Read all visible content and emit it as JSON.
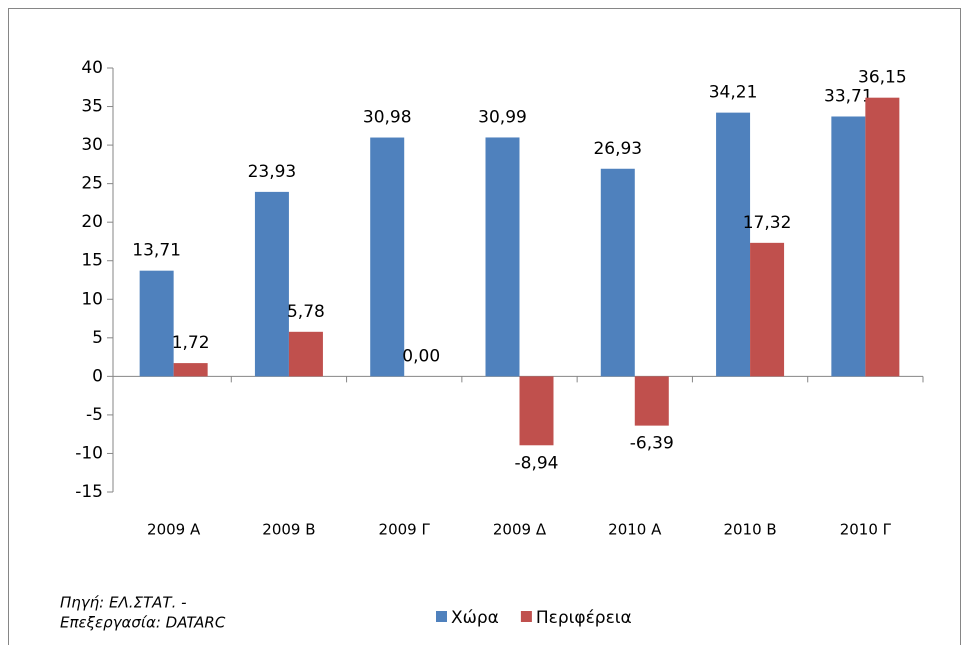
{
  "chart_data": {
    "type": "bar",
    "categories": [
      "2009 A",
      "2009 B",
      "2009 Γ",
      "2009 Δ",
      "2010 A",
      "2010 B",
      "2010 Γ"
    ],
    "series": [
      {
        "name": "Χώρα",
        "color": "#4f81bd",
        "values": [
          13.71,
          23.93,
          30.98,
          30.99,
          26.93,
          34.21,
          33.71
        ],
        "value_labels": [
          "13,71",
          "23,93",
          "30,98",
          "30,99",
          "26,93",
          "34,21",
          "33,71"
        ]
      },
      {
        "name": "Περιφέρεια",
        "color": "#c0504d",
        "values": [
          1.72,
          5.78,
          0.0,
          -8.94,
          -6.39,
          17.32,
          36.15
        ],
        "value_labels": [
          "1,72",
          "5,78",
          "0,00",
          "-8,94",
          "-6,39",
          "17,32",
          "36,15"
        ]
      }
    ],
    "ylim": [
      -15,
      40
    ],
    "yticks": [
      -15,
      -10,
      -5,
      0,
      5,
      10,
      15,
      20,
      25,
      30,
      35,
      40
    ],
    "grid": false,
    "source": [
      "Πηγή: ΕΛ.ΣΤΑΤ. -",
      "Επεξεργασία: DATARC"
    ]
  }
}
